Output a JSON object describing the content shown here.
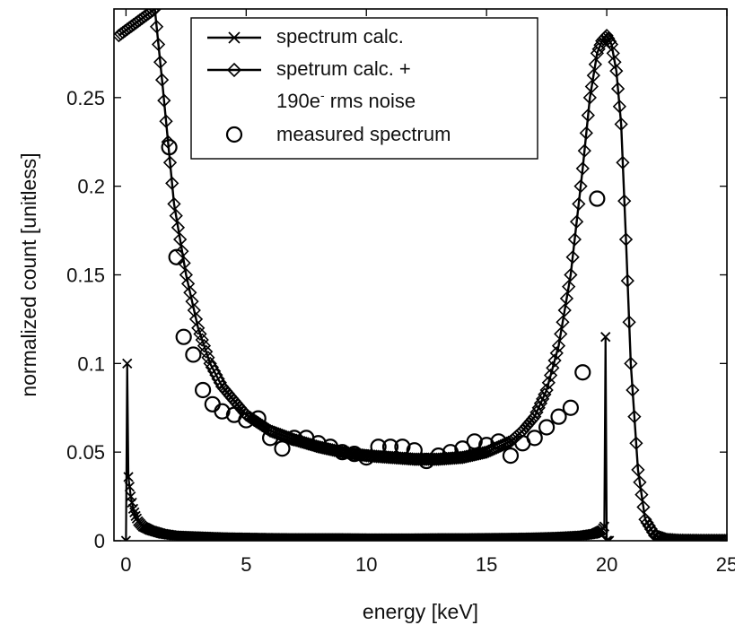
{
  "chart_data": {
    "type": "line",
    "xlabel": "energy [keV]",
    "ylabel": "normalized count [unitless]",
    "xlim": [
      -0.5,
      25
    ],
    "ylim": [
      0,
      0.3
    ],
    "xticks": [
      0,
      5,
      10,
      15,
      20,
      25
    ],
    "xtick_labels": [
      "0",
      "5",
      "10",
      "15",
      "20",
      "25"
    ],
    "yticks": [
      0,
      0.05,
      0.1,
      0.15,
      0.2,
      0.25
    ],
    "ytick_labels": [
      "0",
      "0.05",
      "0.1",
      "0.15",
      "0.2",
      "0.25"
    ],
    "grid": false,
    "legend_position": "top",
    "legend": {
      "line1": "spectrum calc.",
      "line2": "spetrum calc. +",
      "line3_main": "190e",
      "line3_sup": "-",
      "line3_rest": " rms noise",
      "line4": "measured spectrum"
    },
    "series": [
      {
        "name": "spectrum calc.",
        "marker": "x",
        "x": [
          0,
          0.05,
          0.1,
          0.2,
          0.3,
          0.4,
          0.5,
          0.7,
          1,
          1.5,
          2,
          3,
          4,
          5,
          6,
          7,
          8,
          9,
          10,
          11,
          12,
          13,
          14,
          15,
          16,
          17,
          18,
          19,
          19.5,
          19.8,
          19.9,
          19.95,
          20,
          20.05,
          20.1
        ],
        "y": [
          0,
          0.1,
          0.036,
          0.025,
          0.018,
          0.014,
          0.011,
          0.008,
          0.006,
          0.004,
          0.003,
          0.0025,
          0.002,
          0.0018,
          0.0016,
          0.0015,
          0.0015,
          0.0015,
          0.0014,
          0.0014,
          0.0014,
          0.0015,
          0.0015,
          0.0016,
          0.0017,
          0.0019,
          0.0023,
          0.003,
          0.004,
          0.006,
          0.008,
          0.115,
          0,
          0,
          0
        ]
      },
      {
        "name": "spetrum calc. + 190e- rms noise",
        "marker": "diamond",
        "x": [
          -0.3,
          1.2,
          1.5,
          2,
          2.5,
          3,
          3.5,
          4,
          5,
          6,
          7,
          8,
          9,
          10,
          11,
          12,
          13,
          14,
          15,
          16,
          16.5,
          17,
          17.5,
          18,
          18.5,
          19,
          19.3,
          19.6,
          19.8,
          20,
          20.2,
          20.4,
          20.6,
          20.8,
          21,
          21.3,
          21.6,
          22,
          22.5,
          23,
          24,
          25
        ],
        "y": [
          0.285,
          0.3,
          0.26,
          0.19,
          0.15,
          0.12,
          0.1,
          0.087,
          0.071,
          0.062,
          0.057,
          0.053,
          0.05,
          0.048,
          0.047,
          0.046,
          0.046,
          0.047,
          0.05,
          0.056,
          0.062,
          0.07,
          0.085,
          0.11,
          0.15,
          0.21,
          0.25,
          0.275,
          0.282,
          0.285,
          0.28,
          0.265,
          0.235,
          0.17,
          0.1,
          0.04,
          0.012,
          0.003,
          0.0008,
          0.0003,
          0.0002,
          0.0002
        ]
      },
      {
        "name": "measured spectrum",
        "marker": "circle",
        "x": [
          1.8,
          2.1,
          2.4,
          2.8,
          3.2,
          3.6,
          4.0,
          4.5,
          5.0,
          5.5,
          6.0,
          6.5,
          7.0,
          7.5,
          8.0,
          8.5,
          9.0,
          9.5,
          10.0,
          10.5,
          11.0,
          11.5,
          12.0,
          12.5,
          13.0,
          13.5,
          14.0,
          14.5,
          15.0,
          15.5,
          16.0,
          16.5,
          17.0,
          17.5,
          18.0,
          18.5,
          19.0,
          19.6
        ],
        "y": [
          0.222,
          0.16,
          0.115,
          0.105,
          0.085,
          0.077,
          0.073,
          0.071,
          0.068,
          0.069,
          0.058,
          0.052,
          0.058,
          0.058,
          0.055,
          0.053,
          0.05,
          0.049,
          0.047,
          0.053,
          0.053,
          0.053,
          0.051,
          0.045,
          0.048,
          0.05,
          0.052,
          0.056,
          0.054,
          0.056,
          0.048,
          0.055,
          0.058,
          0.064,
          0.07,
          0.075,
          0.095,
          0.193
        ]
      }
    ]
  }
}
